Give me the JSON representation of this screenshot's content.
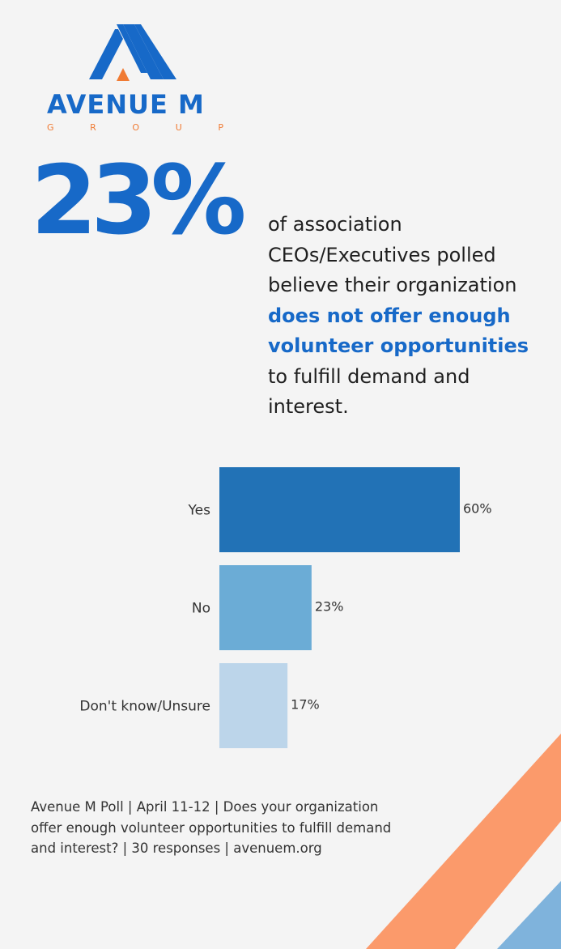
{
  "brand": {
    "name": "AVENUE M",
    "sub": [
      "G",
      "R",
      "O",
      "U",
      "P"
    ],
    "color_blue": "#1769c8",
    "color_orange": "#f07b34"
  },
  "headline": {
    "percent": "23%",
    "line1": "of association",
    "line2": "CEOs/Executives polled",
    "line3": "believe their organization",
    "highlight1": "does not offer enough",
    "highlight2": "volunteer opportunities",
    "line6": "to fulfill demand and",
    "line7": "interest."
  },
  "chart_data": {
    "type": "bar",
    "orientation": "horizontal",
    "title": "",
    "xlabel": "",
    "ylabel": "",
    "xlim": [
      0,
      60
    ],
    "categories": [
      "Yes",
      "No",
      "Don't know/Unsure"
    ],
    "values": [
      60,
      23,
      17
    ],
    "labels": [
      "60%",
      "23%",
      "17%"
    ],
    "colors": [
      "#2272b6",
      "#6bacd6",
      "#bcd5ea"
    ]
  },
  "footnote": {
    "line1": "Avenue M Poll | April 11-12 | Does your organization",
    "line2": "offer enough volunteer opportunities to fulfill demand",
    "line3": "and interest? | 30 responses | avenuem.org"
  },
  "decor": {
    "stripe_orange": "#fb9a6b",
    "stripe_blue": "#7fb3dc"
  }
}
